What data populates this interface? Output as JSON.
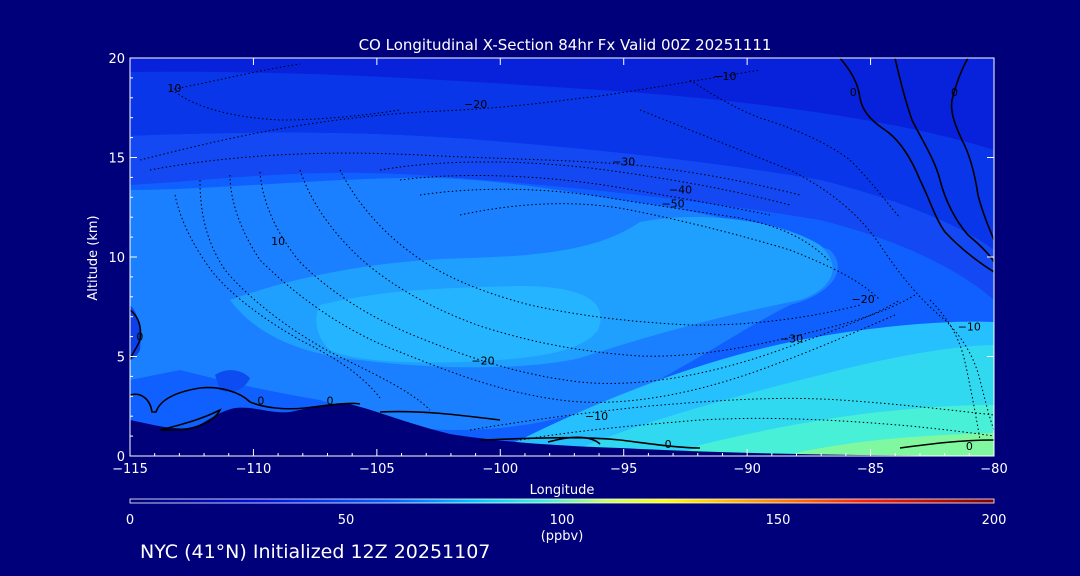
{
  "chart_data": {
    "type": "heatmap",
    "title": "CO Longitudinal X-Section 84hr  Fx Valid 00Z 20251111",
    "xlabel": "Longitude",
    "ylabel": "Altitude (km)",
    "xlim": [
      -115,
      -80
    ],
    "ylim": [
      0,
      20
    ],
    "x_ticks": [
      -115,
      -110,
      -105,
      -100,
      -95,
      -90,
      -85,
      -80
    ],
    "x_tick_labels": [
      "−115",
      "−110",
      "−105",
      "−100",
      "−95",
      "−90",
      "−85",
      "−80"
    ],
    "y_ticks": [
      0,
      5,
      10,
      15,
      20
    ],
    "y_tick_labels": [
      "0",
      "5",
      "10",
      "15",
      "20"
    ],
    "colorbar": {
      "label": "(ppbv)",
      "min": 0,
      "max": 200,
      "ticks": [
        0,
        50,
        100,
        150,
        200
      ],
      "tick_labels": [
        "0",
        "50",
        "100",
        "150",
        "200"
      ]
    },
    "contour_labels": [
      {
        "text": "10",
        "lon": -113.2,
        "alt": 18.5
      },
      {
        "text": "−10",
        "lon": -90.9,
        "alt": 19.1
      },
      {
        "text": "0",
        "lon": -85.7,
        "alt": 18.3
      },
      {
        "text": "0",
        "lon": -81.6,
        "alt": 18.3
      },
      {
        "text": "−20",
        "lon": -101.0,
        "alt": 17.7
      },
      {
        "text": "−30",
        "lon": -95.0,
        "alt": 14.8
      },
      {
        "text": "−40",
        "lon": -92.7,
        "alt": 13.4
      },
      {
        "text": "−50",
        "lon": -93.0,
        "alt": 12.7
      },
      {
        "text": "10",
        "lon": -109.0,
        "alt": 10.8
      },
      {
        "text": "−20",
        "lon": -85.3,
        "alt": 7.9
      },
      {
        "text": "−10",
        "lon": -81.0,
        "alt": 6.5
      },
      {
        "text": "−30",
        "lon": -88.2,
        "alt": 5.9
      },
      {
        "text": "−20",
        "lon": -100.7,
        "alt": 4.8
      },
      {
        "text": "0",
        "lon": -114.6,
        "alt": 6.0
      },
      {
        "text": "0",
        "lon": -109.7,
        "alt": 2.8
      },
      {
        "text": "0",
        "lon": -106.9,
        "alt": 2.8
      },
      {
        "text": "−10",
        "lon": -96.1,
        "alt": 2.0
      },
      {
        "text": "0",
        "lon": -93.2,
        "alt": 0.6
      },
      {
        "text": "0",
        "lon": -81.0,
        "alt": 0.5
      }
    ]
  },
  "footer": "NYC (41°N) Initialized 12Z 20251107"
}
